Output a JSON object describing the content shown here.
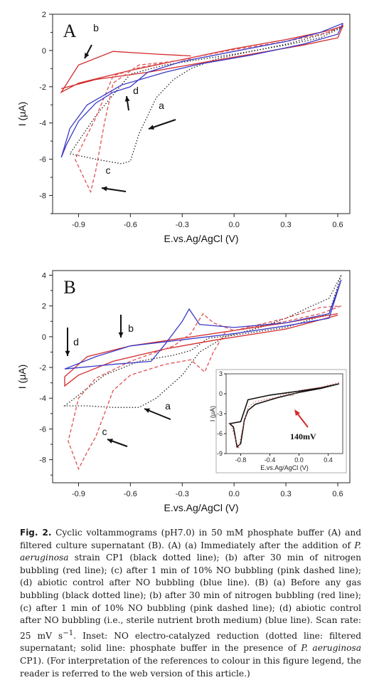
{
  "chart_data": [
    {
      "type": "line",
      "panel_label": "A",
      "xlabel": "E.vs.Ag/AgCl (V)",
      "ylabel": "I (μA)",
      "xlim": [
        -1.05,
        0.67
      ],
      "ylim": [
        -9,
        2
      ],
      "x_ticks": [
        "-0.9",
        "-0.6",
        "-0.3",
        "0.0",
        "0.3",
        "0.6"
      ],
      "y_ticks": [
        "2",
        "0",
        "-2",
        "-4",
        "-6",
        "-8"
      ],
      "series": [
        {
          "curve_label": "a",
          "color": "#222222",
          "dash": "dotted",
          "points": [
            [
              0.63,
              1.3
            ],
            [
              0.5,
              0.85
            ],
            [
              0.3,
              0.35
            ],
            [
              0.1,
              -0.05
            ],
            [
              -0.1,
              -0.45
            ],
            [
              -0.25,
              -1.0
            ],
            [
              -0.35,
              -1.6
            ],
            [
              -0.45,
              -2.6
            ],
            [
              -0.55,
              -4.6
            ],
            [
              -0.6,
              -6.1
            ],
            [
              -0.65,
              -6.25
            ],
            [
              -0.8,
              -6.0
            ],
            [
              -0.95,
              -5.7
            ],
            [
              -0.95,
              -5.7
            ],
            [
              -0.8,
              -3.6
            ],
            [
              -0.6,
              -1.3
            ],
            [
              -0.4,
              -0.8
            ],
            [
              -0.2,
              -0.5
            ],
            [
              0.0,
              -0.2
            ],
            [
              0.3,
              0.3
            ],
            [
              0.5,
              0.7
            ],
            [
              0.63,
              1.3
            ]
          ]
        },
        {
          "curve_label": "b",
          "color": "#d42a2a",
          "dash": "solid",
          "points": [
            [
              -0.25,
              -0.3
            ],
            [
              -0.45,
              -0.2
            ],
            [
              -0.7,
              -0.05
            ],
            [
              -0.9,
              -0.8
            ],
            [
              -1.0,
              -2.3
            ],
            [
              -0.9,
              -1.8
            ],
            [
              -0.6,
              -1.1
            ],
            [
              -0.3,
              -0.5
            ],
            [
              0.0,
              0.1
            ],
            [
              0.3,
              0.6
            ],
            [
              0.55,
              1.1
            ],
            [
              0.63,
              1.35
            ],
            [
              0.6,
              0.7
            ],
            [
              0.4,
              0.3
            ],
            [
              0.1,
              -0.2
            ],
            [
              -0.2,
              -0.7
            ],
            [
              -0.5,
              -1.2
            ],
            [
              -0.8,
              -1.6
            ],
            [
              -1.0,
              -2.1
            ]
          ]
        },
        {
          "curve_label": "c",
          "color": "#e05050",
          "dash": "dashed",
          "points": [
            [
              -0.25,
              -0.45
            ],
            [
              -0.4,
              -0.65
            ],
            [
              -0.55,
              -0.8
            ],
            [
              -0.7,
              -1.8
            ],
            [
              -0.75,
              -4.0
            ],
            [
              -0.8,
              -6.6
            ],
            [
              -0.83,
              -7.8
            ],
            [
              -0.87,
              -7.0
            ],
            [
              -0.92,
              -6.0
            ],
            [
              -0.92,
              -6.0
            ],
            [
              -0.8,
              -3.7
            ],
            [
              -0.7,
              -1.4
            ],
            [
              -0.55,
              -0.95
            ],
            [
              -0.3,
              -0.5
            ],
            [
              0.0,
              0.05
            ],
            [
              0.3,
              0.5
            ],
            [
              0.55,
              1.0
            ],
            [
              0.63,
              1.4
            ]
          ]
        },
        {
          "curve_label": "d",
          "color": "#3a3ac8",
          "dash": "solid",
          "points": [
            [
              0.63,
              1.5
            ],
            [
              0.5,
              1.0
            ],
            [
              0.3,
              0.5
            ],
            [
              0.0,
              -0.05
            ],
            [
              -0.3,
              -0.6
            ],
            [
              -0.5,
              -1.2
            ],
            [
              -0.6,
              -2.0
            ],
            [
              -0.7,
              -2.3
            ],
            [
              -0.8,
              -2.9
            ],
            [
              -0.9,
              -3.9
            ],
            [
              -0.97,
              -5.2
            ],
            [
              -1.0,
              -5.9
            ],
            [
              -1.0,
              -5.9
            ],
            [
              -0.95,
              -4.3
            ],
            [
              -0.85,
              -3.0
            ],
            [
              -0.65,
              -1.9
            ],
            [
              -0.4,
              -1.2
            ],
            [
              -0.2,
              -0.75
            ],
            [
              0.1,
              -0.25
            ],
            [
              0.4,
              0.35
            ],
            [
              0.6,
              0.9
            ],
            [
              0.63,
              1.5
            ]
          ]
        }
      ]
    },
    {
      "type": "line",
      "panel_label": "B",
      "xlabel": "E.vs.Ag/AgCl (V)",
      "ylabel": "I (μA)",
      "xlim": [
        -1.05,
        0.67
      ],
      "ylim": [
        -9.5,
        4.3
      ],
      "x_ticks": [
        "-0.9",
        "-0.6",
        "-0.3",
        "0.0",
        "0.3",
        "0.6"
      ],
      "y_ticks": [
        "4",
        "2",
        "0",
        "-2",
        "-4",
        "-6",
        "-8"
      ],
      "series": [
        {
          "curve_label": "a",
          "color": "#222222",
          "dash": "dotted",
          "points": [
            [
              0.62,
              4.0
            ],
            [
              0.55,
              2.5
            ],
            [
              0.45,
              2.0
            ],
            [
              0.3,
              1.2
            ],
            [
              0.15,
              0.6
            ],
            [
              -0.05,
              0.0
            ],
            [
              -0.2,
              -1.0
            ],
            [
              -0.3,
              -2.5
            ],
            [
              -0.45,
              -4.0
            ],
            [
              -0.55,
              -4.6
            ],
            [
              -0.7,
              -4.6
            ],
            [
              -0.85,
              -4.5
            ],
            [
              -0.98,
              -4.5
            ],
            [
              -0.98,
              -4.5
            ],
            [
              -0.9,
              -3.8
            ],
            [
              -0.75,
              -2.5
            ],
            [
              -0.55,
              -1.6
            ],
            [
              -0.35,
              -1.2
            ],
            [
              -0.25,
              -0.9
            ],
            [
              -0.15,
              -0.1
            ],
            [
              0.0,
              0.1
            ],
            [
              0.3,
              0.6
            ],
            [
              0.55,
              1.5
            ],
            [
              0.62,
              4.0
            ]
          ]
        },
        {
          "curve_label": "b",
          "color": "#d42a2a",
          "dash": "solid",
          "points": [
            [
              0.6,
              1.5
            ],
            [
              0.3,
              0.9
            ],
            [
              0.0,
              0.4
            ],
            [
              -0.3,
              -0.1
            ],
            [
              -0.6,
              -0.6
            ],
            [
              -0.85,
              -1.3
            ],
            [
              -0.98,
              -2.6
            ],
            [
              -0.98,
              -3.2
            ],
            [
              -0.9,
              -2.5
            ],
            [
              -0.7,
              -1.6
            ],
            [
              -0.4,
              -0.8
            ],
            [
              -0.1,
              -0.2
            ],
            [
              0.3,
              0.5
            ],
            [
              0.6,
              1.4
            ]
          ]
        },
        {
          "curve_label": "c",
          "color": "#e05050",
          "dash": "dashed",
          "points": [
            [
              0.62,
              2.0
            ],
            [
              0.5,
              1.5
            ],
            [
              0.3,
              1.0
            ],
            [
              0.1,
              0.6
            ],
            [
              -0.05,
              0.3
            ],
            [
              -0.12,
              -1.0
            ],
            [
              -0.17,
              -2.3
            ],
            [
              -0.25,
              -1.5
            ],
            [
              -0.4,
              -1.8
            ],
            [
              -0.6,
              -2.5
            ],
            [
              -0.7,
              -3.5
            ],
            [
              -0.8,
              -6.5
            ],
            [
              -0.85,
              -7.5
            ],
            [
              -0.9,
              -8.6
            ],
            [
              -0.96,
              -6.8
            ],
            [
              -0.96,
              -6.8
            ],
            [
              -0.9,
              -4.0
            ],
            [
              -0.8,
              -2.7
            ],
            [
              -0.6,
              -1.6
            ],
            [
              -0.35,
              -0.6
            ],
            [
              -0.25,
              0.2
            ],
            [
              -0.18,
              1.5
            ],
            [
              -0.12,
              0.9
            ],
            [
              0.0,
              0.4
            ],
            [
              0.3,
              1.2
            ],
            [
              0.5,
              1.9
            ],
            [
              0.62,
              2.0
            ]
          ]
        },
        {
          "curve_label": "d",
          "color": "#3a3ac8",
          "dash": "solid",
          "points": [
            [
              0.62,
              3.7
            ],
            [
              0.55,
              1.5
            ],
            [
              0.3,
              0.9
            ],
            [
              0.0,
              0.6
            ],
            [
              -0.2,
              0.8
            ],
            [
              -0.26,
              1.8
            ],
            [
              -0.3,
              1.0
            ],
            [
              -0.4,
              -0.5
            ],
            [
              -0.48,
              -1.6
            ],
            [
              -0.7,
              -1.8
            ],
            [
              -0.98,
              -2.1
            ],
            [
              -0.98,
              -2.1
            ],
            [
              -0.8,
              -1.3
            ],
            [
              -0.6,
              -0.6
            ],
            [
              -0.3,
              -0.2
            ],
            [
              0.0,
              0.2
            ],
            [
              0.3,
              0.7
            ],
            [
              0.55,
              1.2
            ],
            [
              0.62,
              3.7
            ]
          ]
        }
      ],
      "inset": {
        "xlabel": "E.vs.Ag/AgCl (V)",
        "ylabel": "I (μA)",
        "xlim": [
          -1.0,
          0.6
        ],
        "ylim": [
          -9,
          3
        ],
        "x_ticks": [
          "-0.8",
          "-0.4",
          "0.0",
          "0.4"
        ],
        "y_ticks": [
          "3",
          "0",
          "-3",
          "-6",
          "-9"
        ],
        "annotation": "140mV",
        "series": [
          {
            "color": "#111111",
            "dash": "solid",
            "points": [
              [
                0.55,
                1.5
              ],
              [
                0.3,
                0.8
              ],
              [
                0.0,
                0.2
              ],
              [
                -0.3,
                -0.6
              ],
              [
                -0.6,
                -1.6
              ],
              [
                -0.7,
                -2.5
              ],
              [
                -0.75,
                -4.0
              ],
              [
                -0.8,
                -7.5
              ],
              [
                -0.85,
                -8.0
              ],
              [
                -0.9,
                -5.0
              ],
              [
                -0.95,
                -4.5
              ],
              [
                -0.95,
                -4.5
              ],
              [
                -0.8,
                -4.2
              ],
              [
                -0.7,
                -0.9
              ],
              [
                -0.4,
                -0.2
              ],
              [
                0.0,
                0.4
              ],
              [
                0.3,
                0.9
              ],
              [
                0.55,
                1.5
              ]
            ]
          },
          {
            "color": "#e05050",
            "dash": "dotted",
            "points": [
              [
                0.55,
                1.7
              ],
              [
                0.3,
                1.0
              ],
              [
                0.0,
                0.5
              ],
              [
                -0.1,
                -0.4
              ],
              [
                -0.15,
                0.1
              ],
              [
                -0.3,
                -0.5
              ],
              [
                -0.6,
                -1.2
              ],
              [
                -0.7,
                -2.0
              ],
              [
                -0.78,
                -5.5
              ],
              [
                -0.83,
                -8.3
              ],
              [
                -0.9,
                -5.8
              ],
              [
                -0.95,
                -4.3
              ]
            ]
          }
        ]
      }
    }
  ],
  "caption": {
    "label": "Fig. 2.",
    "segments": [
      " Cyclic voltammograms (pH7.0) in 50 mM phosphate buffer (A) and filtered culture supernatant (B). (A) (a) Immediately after the addition of ",
      "P. aeruginosa",
      " strain CP1 (black dotted line); (b) after 30 min of nitrogen bubbling (red line); (c) after 1 min of 10% NO bubbling (pink dashed line); (d) abiotic control after NO bubbling (blue line). (B) (a) Before any gas bubbling (black dotted line); (b) after 30 min of nitrogen bubbling (red line); (c) after 1 min of 10% NO bubbling (pink dashed line); (d) abiotic control after NO bubbling (i.e., sterile nutrient broth medium) (blue line). Scan rate: 25 mV s",
      "−1",
      ". Inset: NO electro-catalyzed reduction (dotted line: filtered supernatant; solid line: phosphate buffer in the presence of ",
      "P. aeruginosa",
      " CP1). (For interpretation of the references to colour in this figure legend, the reader is referred to the web version of this article.)"
    ]
  }
}
